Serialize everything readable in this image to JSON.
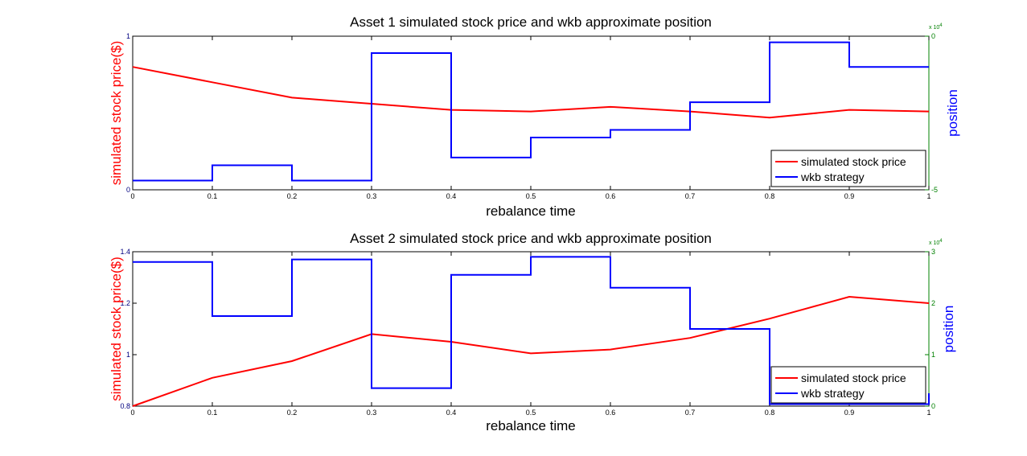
{
  "colors": {
    "price": "#ff0000",
    "strategy": "#0000ff",
    "right_axis": "#008000",
    "axis": "#000000"
  },
  "chart_data": [
    {
      "type": "line",
      "title": "Asset 1 simulated stock price and wkb approximate position",
      "xlabel": "rebalance time",
      "ylabel": "simulated stock price($)",
      "y2label": "position",
      "xlim": [
        0,
        1
      ],
      "ylim": [
        0,
        1
      ],
      "y2lim": [
        -50000,
        0
      ],
      "x_ticks": [
        "0",
        "0.1",
        "0.2",
        "0.3",
        "0.4",
        "0.5",
        "0.6",
        "0.7",
        "0.8",
        "0.9",
        "1"
      ],
      "y_ticks": [
        "0",
        "1"
      ],
      "y2_ticks": [
        "-5",
        "0"
      ],
      "y2_exponent": "x 10",
      "y2_exponent_power": "4",
      "legend_position": "bottom-right",
      "series": [
        {
          "name": "simulated stock price",
          "axis": "left",
          "style": "line",
          "x": [
            0,
            0.1,
            0.2,
            0.3,
            0.4,
            0.5,
            0.6,
            0.7,
            0.8,
            0.9,
            1
          ],
          "y": [
            0.8,
            0.7,
            0.6,
            0.56,
            0.52,
            0.51,
            0.54,
            0.51,
            0.47,
            0.52,
            0.51
          ]
        },
        {
          "name": "wkb strategy",
          "axis": "right",
          "style": "step",
          "x": [
            0,
            0.1,
            0.2,
            0.3,
            0.4,
            0.5,
            0.6,
            0.7,
            0.8,
            0.9,
            1
          ],
          "y": [
            -47000,
            -42000,
            -47000,
            -5500,
            -39500,
            -33000,
            -30500,
            -21500,
            -2000,
            -10000,
            -10000
          ]
        }
      ]
    },
    {
      "type": "line",
      "title": "Asset 2 simulated stock price and wkb approximate position",
      "xlabel": "rebalance time",
      "ylabel": "simulated stock price($)",
      "y2label": "position",
      "xlim": [
        0,
        1
      ],
      "ylim": [
        0.8,
        1.4
      ],
      "y2lim": [
        0,
        30000
      ],
      "x_ticks": [
        "0",
        "0.1",
        "0.2",
        "0.3",
        "0.4",
        "0.5",
        "0.6",
        "0.7",
        "0.8",
        "0.9",
        "1"
      ],
      "y_ticks": [
        "0.8",
        "1",
        "1.2",
        "1.4"
      ],
      "y2_ticks": [
        "0",
        "1",
        "2",
        "3"
      ],
      "y2_exponent": "x 10",
      "y2_exponent_power": "4",
      "legend_position": "bottom-right",
      "series": [
        {
          "name": "simulated stock price",
          "axis": "left",
          "style": "line",
          "x": [
            0,
            0.1,
            0.2,
            0.3,
            0.4,
            0.5,
            0.6,
            0.7,
            0.8,
            0.9,
            1
          ],
          "y": [
            0.8,
            0.91,
            0.975,
            1.08,
            1.05,
            1.005,
            1.02,
            1.065,
            1.14,
            1.225,
            1.2
          ]
        },
        {
          "name": "wkb strategy",
          "axis": "right",
          "style": "step",
          "x": [
            0,
            0.1,
            0.2,
            0.3,
            0.4,
            0.5,
            0.6,
            0.7,
            0.8,
            0.9,
            1
          ],
          "y": [
            28000,
            17500,
            28500,
            3500,
            25500,
            29000,
            23000,
            15000,
            400,
            400,
            2500
          ]
        }
      ]
    }
  ]
}
